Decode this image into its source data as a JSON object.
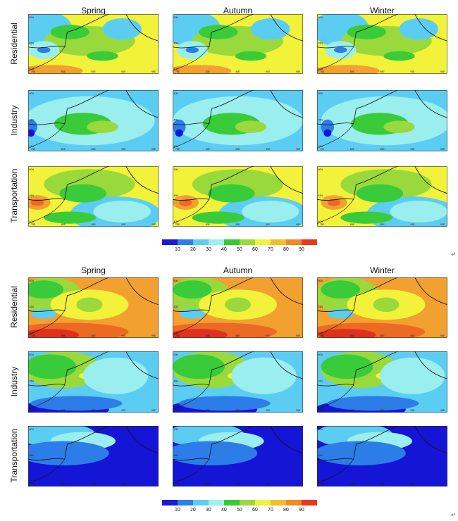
{
  "panels": [
    {
      "seasons": [
        "Spring",
        "Autumn",
        "Winter"
      ],
      "sectors": [
        "Residential",
        "Industry",
        "Transportation"
      ]
    },
    {
      "seasons": [
        "Spring",
        "Autumn",
        "Winter"
      ],
      "sectors": [
        "Residential",
        "Industry",
        "Transportation"
      ]
    }
  ],
  "map_axes": {
    "x_ticks": [
      "75E",
      "80E",
      "85E",
      "90E",
      "95E"
    ],
    "y_ticks": [
      "40N",
      "45N",
      "50N"
    ]
  },
  "colorbar": {
    "labels": [
      "10",
      "20",
      "30",
      "40",
      "50",
      "60",
      "70",
      "80",
      "90"
    ],
    "colors": [
      "#1a1ad9",
      "#2e7fe6",
      "#5fcdf0",
      "#9fefef",
      "#33cc33",
      "#9ad93b",
      "#f2f23a",
      "#f2be2c",
      "#f08a24",
      "#e83a1a",
      "#c81010"
    ]
  },
  "palette": {
    "dark_blue": "#1515d6",
    "blue": "#2d7de8",
    "light_blue": "#5ccdf2",
    "pale_cyan": "#9aeeee",
    "green": "#3acb3a",
    "light_green": "#9ad93b",
    "yellow": "#f2f23a",
    "orange": "#f2a030",
    "red_orange": "#ec6a24",
    "red": "#e0301e",
    "boundary": "#111111"
  }
}
